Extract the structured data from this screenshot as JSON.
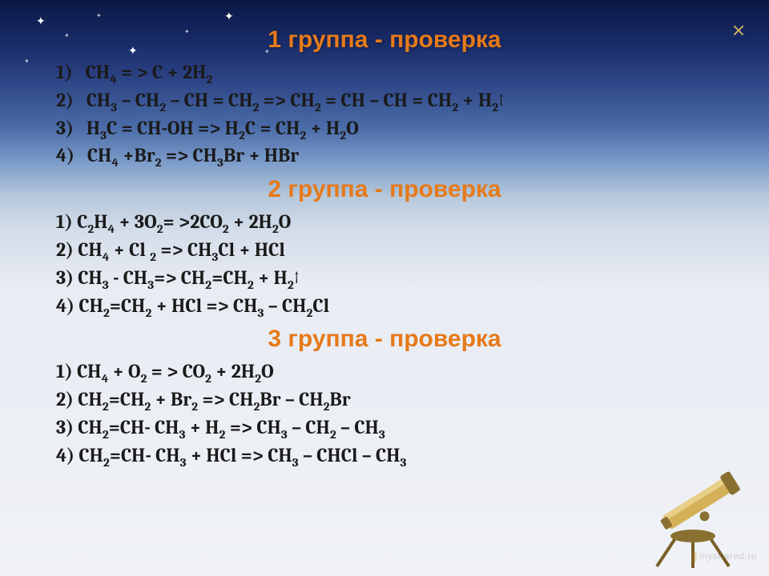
{
  "background": {
    "gradient_stops": [
      "#0a1845",
      "#1a2d6b",
      "#2d4485",
      "#4a6ba8",
      "#7a9ac8",
      "#b5c8db",
      "#d4ddea",
      "#e8ecf3",
      "#f0f2f6"
    ],
    "star_color": "#ffffff"
  },
  "headings": {
    "g1": "1 группа - проверка",
    "g2": "2 группа - проверка",
    "g3": "3 группа - проверка",
    "color": "#e67a1a",
    "fontsize": 30
  },
  "equations": {
    "color": "#1a1a1a",
    "fontsize": 24,
    "group1": [
      {
        "n": "1)",
        "t": "CH₄ = > C + 2H₂"
      },
      {
        "n": "2)",
        "t": "CH₃ – CH₂ – CH = CH₂ => CH₂ = CH – CH = CH₂ + H₂↑"
      },
      {
        "n": "3)",
        "t": "H₃C = CH-OH => H₂C = CH₂ + H₂O"
      },
      {
        "n": "4)",
        "t": "CH₄ +Br₂ => CH₃Br  + HBr"
      }
    ],
    "group2": [
      {
        "n": "1)",
        "t": "C₂H₄ + 3O₂= >2CO₂ + 2H₂O"
      },
      {
        "n": "2)",
        "t": "CH₄ + Cl ₂ => CH₃Cl + HCl"
      },
      {
        "n": "3)",
        "t": "CH₃ - CH₃=> CH₂=CH₂ + H₂↑"
      },
      {
        "n": "4)",
        "t": "CH₂=CH₂  + HCl => CH₃ – CH₂Cl"
      }
    ],
    "group3": [
      {
        "n": "1)",
        "t": "CH₄ + O₂ = > CO₂ + 2H₂O"
      },
      {
        "n": "2)",
        "t": "CH₂=CH₂ + Br₂ => CH₂Br – CH₂Br"
      },
      {
        "n": "3)",
        "t": "CH₂=CH- CH₃ + H₂ => CH₃ – CH₂ – CH₃"
      },
      {
        "n": "4)",
        "t": "CH₂=CH- CH₃ + HCl => CH₃ – CHCl – CH₃"
      }
    ]
  },
  "telescope": {
    "body_color": "#d4b158",
    "accent_color": "#e8d088",
    "dark_color": "#8a7030",
    "leg_color": "#7a6028"
  },
  "watermark": {
    "text": "myshared",
    "suffix": ".ru"
  }
}
